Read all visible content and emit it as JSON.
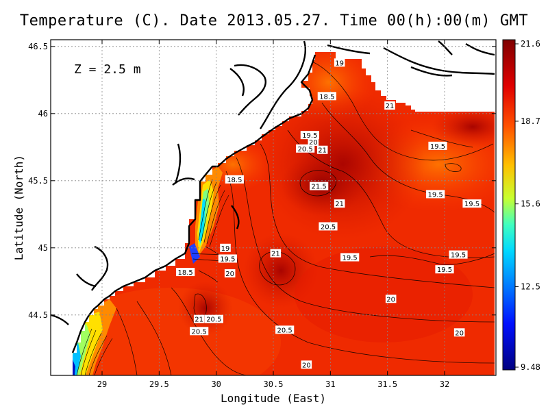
{
  "title": "Temperature (C). Date 2013.05.27. Time 00(h):00(m) GMT",
  "depth_label": "Z = 2.5 m",
  "chart_data": {
    "type": "heatmap",
    "variable": "Temperature (C)",
    "xlabel": "Longitude (East)",
    "ylabel": "Latitude (North)",
    "xlim": [
      28.55,
      32.45
    ],
    "ylim": [
      44.05,
      46.55
    ],
    "xticks": [
      29,
      29.5,
      30,
      30.5,
      31,
      31.5,
      32
    ],
    "xtick_labels": [
      "29",
      "29.5",
      "30",
      "30.5",
      "31",
      "31.5",
      "32"
    ],
    "yticks": [
      44.5,
      45,
      45.5,
      46,
      46.5
    ],
    "ytick_labels": [
      "44.5",
      "45",
      "45.5",
      "46",
      "46.5"
    ],
    "grid": true,
    "colorbar": {
      "min": 9.48,
      "max": 21.6,
      "ticks": [
        21.6,
        18.7,
        15.6,
        12.5,
        9.48
      ],
      "tick_labels": [
        "21.6",
        "18.7",
        "15.6",
        "12.5",
        "9.48"
      ],
      "colors": [
        "#00007f",
        "#0000ff",
        "#007fff",
        "#00ffff",
        "#7fff7f",
        "#ffff00",
        "#ff7f00",
        "#ff0000",
        "#7f0000"
      ]
    },
    "contour_labels": [
      {
        "text": "19",
        "lon": 31.08,
        "lat": 46.38
      },
      {
        "text": "18.5",
        "lon": 30.97,
        "lat": 46.13
      },
      {
        "text": "21",
        "lon": 31.52,
        "lat": 46.06
      },
      {
        "text": "19.5",
        "lon": 30.82,
        "lat": 45.84
      },
      {
        "text": "20",
        "lon": 30.85,
        "lat": 45.79
      },
      {
        "text": "20.5",
        "lon": 30.78,
        "lat": 45.74
      },
      {
        "text": "21",
        "lon": 30.93,
        "lat": 45.73
      },
      {
        "text": "19.5",
        "lon": 31.94,
        "lat": 45.76
      },
      {
        "text": "18.5",
        "lon": 30.16,
        "lat": 45.51
      },
      {
        "text": "21.5",
        "lon": 30.9,
        "lat": 45.46
      },
      {
        "text": "21",
        "lon": 31.08,
        "lat": 45.33
      },
      {
        "text": "19.5",
        "lon": 31.92,
        "lat": 45.4
      },
      {
        "text": "19.5",
        "lon": 32.24,
        "lat": 45.33
      },
      {
        "text": "20.5",
        "lon": 30.98,
        "lat": 45.16
      },
      {
        "text": "19",
        "lon": 30.08,
        "lat": 45.0
      },
      {
        "text": "21",
        "lon": 30.52,
        "lat": 44.96
      },
      {
        "text": "19.5",
        "lon": 30.1,
        "lat": 44.92
      },
      {
        "text": "19.5",
        "lon": 31.17,
        "lat": 44.93
      },
      {
        "text": "19.5",
        "lon": 32.12,
        "lat": 44.95
      },
      {
        "text": "19.5",
        "lon": 32.0,
        "lat": 44.84
      },
      {
        "text": "18.5",
        "lon": 29.73,
        "lat": 44.82
      },
      {
        "text": "20",
        "lon": 30.12,
        "lat": 44.81
      },
      {
        "text": "20",
        "lon": 31.53,
        "lat": 44.62
      },
      {
        "text": "21",
        "lon": 29.85,
        "lat": 44.47
      },
      {
        "text": "20.5",
        "lon": 29.98,
        "lat": 44.47
      },
      {
        "text": "20.5",
        "lon": 29.85,
        "lat": 44.38
      },
      {
        "text": "20.5",
        "lon": 30.6,
        "lat": 44.39
      },
      {
        "text": "20",
        "lon": 32.13,
        "lat": 44.37
      },
      {
        "text": "20",
        "lon": 30.79,
        "lat": 44.13
      }
    ]
  }
}
